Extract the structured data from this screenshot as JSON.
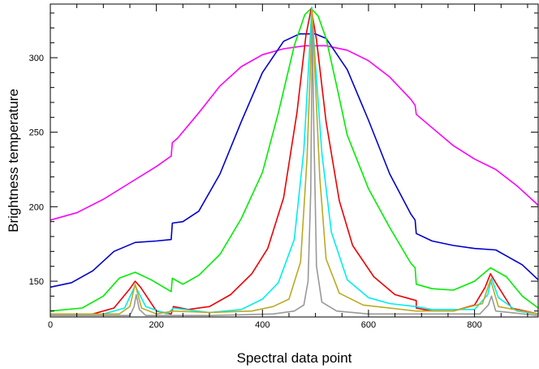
{
  "chart_data": {
    "type": "line",
    "xlabel": "Spectral data point",
    "ylabel": "Brightness temperature",
    "xlim": [
      0,
      920
    ],
    "ylim": [
      126,
      336
    ],
    "x_ticks": [
      0,
      200,
      400,
      600,
      800
    ],
    "y_ticks": [
      150,
      200,
      250,
      300
    ],
    "grid": false,
    "legend": "none",
    "series": [
      {
        "color": "#ff00ff",
        "points": [
          [
            0,
            191
          ],
          [
            50,
            196
          ],
          [
            100,
            205
          ],
          [
            150,
            216
          ],
          [
            200,
            227
          ],
          [
            228,
            234
          ],
          [
            230,
            243
          ],
          [
            240,
            246
          ],
          [
            280,
            263
          ],
          [
            320,
            281
          ],
          [
            360,
            294
          ],
          [
            400,
            302
          ],
          [
            440,
            306
          ],
          [
            480,
            308
          ],
          [
            520,
            308
          ],
          [
            560,
            305
          ],
          [
            600,
            298
          ],
          [
            640,
            287
          ],
          [
            680,
            272
          ],
          [
            688,
            268
          ],
          [
            690,
            262
          ],
          [
            720,
            253
          ],
          [
            760,
            241
          ],
          [
            800,
            232
          ],
          [
            840,
            225
          ],
          [
            880,
            214
          ],
          [
            920,
            201
          ]
        ]
      },
      {
        "color": "#0000cc",
        "points": [
          [
            0,
            146
          ],
          [
            40,
            149
          ],
          [
            80,
            157
          ],
          [
            120,
            170
          ],
          [
            160,
            176
          ],
          [
            200,
            177
          ],
          [
            228,
            178
          ],
          [
            230,
            189
          ],
          [
            250,
            190
          ],
          [
            280,
            197
          ],
          [
            320,
            222
          ],
          [
            360,
            257
          ],
          [
            400,
            290
          ],
          [
            440,
            311
          ],
          [
            470,
            316
          ],
          [
            500,
            316
          ],
          [
            520,
            313
          ],
          [
            560,
            292
          ],
          [
            600,
            258
          ],
          [
            640,
            222
          ],
          [
            680,
            195
          ],
          [
            688,
            191
          ],
          [
            690,
            182
          ],
          [
            720,
            177
          ],
          [
            760,
            174
          ],
          [
            800,
            172
          ],
          [
            840,
            171
          ],
          [
            860,
            167
          ],
          [
            890,
            161
          ],
          [
            920,
            151
          ]
        ]
      },
      {
        "color": "#00ee00",
        "points": [
          [
            0,
            130
          ],
          [
            60,
            132
          ],
          [
            100,
            140
          ],
          [
            130,
            152
          ],
          [
            160,
            156
          ],
          [
            190,
            151
          ],
          [
            228,
            143
          ],
          [
            230,
            152
          ],
          [
            240,
            150
          ],
          [
            250,
            148
          ],
          [
            280,
            154
          ],
          [
            320,
            168
          ],
          [
            360,
            192
          ],
          [
            400,
            223
          ],
          [
            430,
            263
          ],
          [
            460,
            308
          ],
          [
            480,
            329
          ],
          [
            492,
            333
          ],
          [
            505,
            328
          ],
          [
            520,
            313
          ],
          [
            540,
            281
          ],
          [
            560,
            248
          ],
          [
            600,
            212
          ],
          [
            640,
            186
          ],
          [
            680,
            162
          ],
          [
            688,
            159
          ],
          [
            690,
            148
          ],
          [
            720,
            145
          ],
          [
            760,
            144
          ],
          [
            800,
            150
          ],
          [
            830,
            159
          ],
          [
            860,
            153
          ],
          [
            890,
            140
          ],
          [
            920,
            132
          ]
        ]
      },
      {
        "color": "#ee0000",
        "points": [
          [
            0,
            128
          ],
          [
            80,
            128
          ],
          [
            120,
            132
          ],
          [
            150,
            145
          ],
          [
            160,
            150
          ],
          [
            170,
            146
          ],
          [
            200,
            130
          ],
          [
            228,
            128
          ],
          [
            232,
            133
          ],
          [
            260,
            131
          ],
          [
            300,
            133
          ],
          [
            340,
            141
          ],
          [
            380,
            155
          ],
          [
            410,
            172
          ],
          [
            440,
            206
          ],
          [
            465,
            263
          ],
          [
            482,
            315
          ],
          [
            492,
            333
          ],
          [
            502,
            312
          ],
          [
            520,
            257
          ],
          [
            545,
            204
          ],
          [
            570,
            174
          ],
          [
            610,
            153
          ],
          [
            650,
            141
          ],
          [
            690,
            137
          ],
          [
            690,
            132
          ],
          [
            720,
            130
          ],
          [
            760,
            130
          ],
          [
            800,
            134
          ],
          [
            820,
            146
          ],
          [
            830,
            155
          ],
          [
            840,
            149
          ],
          [
            870,
            132
          ],
          [
            920,
            128
          ]
        ]
      },
      {
        "color": "#00eeee",
        "points": [
          [
            0,
            128
          ],
          [
            100,
            128
          ],
          [
            140,
            132
          ],
          [
            160,
            147
          ],
          [
            180,
            133
          ],
          [
            220,
            128
          ],
          [
            232,
            132
          ],
          [
            300,
            129
          ],
          [
            360,
            131
          ],
          [
            400,
            138
          ],
          [
            430,
            149
          ],
          [
            460,
            178
          ],
          [
            478,
            238
          ],
          [
            488,
            300
          ],
          [
            493,
            334
          ],
          [
            500,
            296
          ],
          [
            512,
            236
          ],
          [
            530,
            183
          ],
          [
            560,
            151
          ],
          [
            600,
            139
          ],
          [
            640,
            135
          ],
          [
            690,
            133
          ],
          [
            720,
            131
          ],
          [
            800,
            131
          ],
          [
            825,
            141
          ],
          [
            832,
            152
          ],
          [
            845,
            139
          ],
          [
            880,
            130
          ],
          [
            920,
            128
          ]
        ]
      },
      {
        "color": "#bbaa22",
        "points": [
          [
            0,
            128
          ],
          [
            130,
            128
          ],
          [
            150,
            133
          ],
          [
            160,
            148
          ],
          [
            172,
            132
          ],
          [
            200,
            128
          ],
          [
            232,
            130
          ],
          [
            300,
            129
          ],
          [
            380,
            130
          ],
          [
            420,
            133
          ],
          [
            450,
            138
          ],
          [
            472,
            163
          ],
          [
            484,
            232
          ],
          [
            490,
            290
          ],
          [
            494,
            332
          ],
          [
            499,
            290
          ],
          [
            508,
            220
          ],
          [
            520,
            165
          ],
          [
            545,
            142
          ],
          [
            590,
            134
          ],
          [
            690,
            130
          ],
          [
            760,
            130
          ],
          [
            815,
            135
          ],
          [
            830,
            151
          ],
          [
            845,
            133
          ],
          [
            920,
            128
          ]
        ]
      },
      {
        "color": "#999999",
        "points": [
          [
            0,
            127
          ],
          [
            150,
            127
          ],
          [
            158,
            133
          ],
          [
            162,
            141
          ],
          [
            168,
            131
          ],
          [
            180,
            127
          ],
          [
            300,
            127
          ],
          [
            420,
            128
          ],
          [
            460,
            130
          ],
          [
            478,
            134
          ],
          [
            486,
            150
          ],
          [
            491,
            210
          ],
          [
            494,
            320
          ],
          [
            497,
            250
          ],
          [
            502,
            160
          ],
          [
            512,
            136
          ],
          [
            540,
            130
          ],
          [
            600,
            128
          ],
          [
            810,
            128
          ],
          [
            826,
            134
          ],
          [
            832,
            140
          ],
          [
            840,
            130
          ],
          [
            920,
            127
          ]
        ]
      }
    ]
  }
}
